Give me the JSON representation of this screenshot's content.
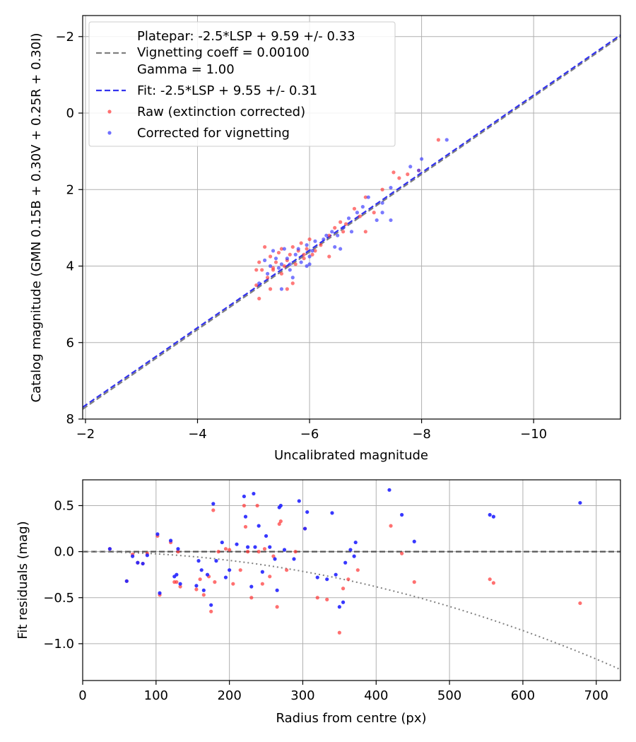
{
  "chart_data": [
    {
      "type": "scatter",
      "xlabel": "Uncalibrated magnitude",
      "ylabel": "Catalog magnitude (GMN 0.15B + 0.30V + 0.25R + 0.30I)",
      "xlim": [
        -1.95,
        -11.55
      ],
      "ylim": [
        8.0,
        -2.55
      ],
      "x_inverted": true,
      "y_inverted": true,
      "grid": true,
      "xticks": [
        -2,
        -4,
        -6,
        -8,
        -10
      ],
      "yticks": [
        -2,
        0,
        2,
        4,
        6,
        8
      ],
      "xtick_labels": [
        "−2",
        "−4",
        "−6",
        "−8",
        "−10"
      ],
      "ytick_labels": [
        "−2",
        "0",
        "2",
        "4",
        "6",
        "8"
      ],
      "legend_position": "top-left",
      "legend": {
        "platepar_line1": "Platepar: -2.5*LSP + 9.59 +/- 0.33",
        "platepar_line2": "Vignetting coeff = 0.00100",
        "platepar_line3": "Gamma = 1.00",
        "fit": "Fit: -2.5*LSP + 9.55 +/- 0.31",
        "raw": "Raw (extinction corrected)",
        "corrected": "Corrected for vignetting"
      },
      "colors": {
        "platepar": "#808080",
        "fit": "#3333ee",
        "raw": "#ff3333",
        "corrected": "#3333ff"
      },
      "lines": [
        {
          "name": "Platepar",
          "x": [
            -1.95,
            -11.55
          ],
          "y": [
            7.74,
            -2.0
          ]
        },
        {
          "name": "Fit",
          "x": [
            -1.95,
            -11.55
          ],
          "y": [
            7.69,
            -2.04
          ]
        }
      ],
      "series": [
        {
          "name": "Raw (extinction corrected)",
          "points": [
            [
              -8.3,
              0.7
            ],
            [
              -7.95,
              1.5
            ],
            [
              -7.75,
              1.6
            ],
            [
              -7.6,
              1.7
            ],
            [
              -7.5,
              1.55
            ],
            [
              -7.3,
              2.0
            ],
            [
              -7.0,
              2.2
            ],
            [
              -7.15,
              2.6
            ],
            [
              -7.0,
              3.1
            ],
            [
              -6.9,
              2.7
            ],
            [
              -6.8,
              2.5
            ],
            [
              -6.65,
              2.9
            ],
            [
              -6.6,
              3.1
            ],
            [
              -6.55,
              2.85
            ],
            [
              -6.45,
              3.0
            ],
            [
              -6.35,
              3.2
            ],
            [
              -6.2,
              3.45
            ],
            [
              -6.05,
              3.7
            ],
            [
              -6.0,
              3.3
            ],
            [
              -5.95,
              3.55
            ],
            [
              -5.9,
              3.8
            ],
            [
              -5.85,
              3.4
            ],
            [
              -5.8,
              3.6
            ],
            [
              -5.75,
              3.95
            ],
            [
              -5.7,
              3.5
            ],
            [
              -5.65,
              3.7
            ],
            [
              -5.6,
              3.85
            ],
            [
              -5.55,
              4.0
            ],
            [
              -5.5,
              4.2
            ],
            [
              -5.45,
              3.65
            ],
            [
              -5.4,
              3.9
            ],
            [
              -5.35,
              4.1
            ],
            [
              -5.3,
              3.75
            ],
            [
              -5.25,
              4.3
            ],
            [
              -5.2,
              3.5
            ],
            [
              -5.15,
              4.1
            ],
            [
              -5.1,
              3.9
            ],
            [
              -5.05,
              4.5
            ],
            [
              -5.3,
              4.6
            ],
            [
              -5.6,
              4.6
            ],
            [
              -5.1,
              4.85
            ],
            [
              -5.35,
              4.05
            ],
            [
              -5.5,
              3.55
            ],
            [
              -6.35,
              3.75
            ],
            [
              -6.1,
              3.6
            ],
            [
              -5.05,
              4.1
            ],
            [
              -5.7,
              4.45
            ],
            [
              -5.9,
              3.7
            ]
          ]
        },
        {
          "name": "Corrected for vignetting",
          "points": [
            [
              -8.45,
              0.7
            ],
            [
              -8.0,
              1.2
            ],
            [
              -7.95,
              1.5
            ],
            [
              -7.8,
              1.4
            ],
            [
              -7.45,
              1.95
            ],
            [
              -7.3,
              2.35
            ],
            [
              -7.3,
              2.6
            ],
            [
              -7.2,
              2.8
            ],
            [
              -7.05,
              2.2
            ],
            [
              -6.95,
              2.45
            ],
            [
              -6.85,
              2.6
            ],
            [
              -6.7,
              2.75
            ],
            [
              -6.6,
              3.0
            ],
            [
              -6.5,
              3.2
            ],
            [
              -6.45,
              3.5
            ],
            [
              -6.4,
              3.1
            ],
            [
              -6.3,
              3.2
            ],
            [
              -6.25,
              3.3
            ],
            [
              -6.1,
              3.35
            ],
            [
              -6.05,
              3.6
            ],
            [
              -6.0,
              3.75
            ],
            [
              -5.95,
              3.45
            ],
            [
              -5.85,
              3.9
            ],
            [
              -5.8,
              3.55
            ],
            [
              -5.75,
              3.7
            ],
            [
              -5.65,
              3.95
            ],
            [
              -5.6,
              3.8
            ],
            [
              -5.55,
              3.55
            ],
            [
              -5.5,
              3.95
            ],
            [
              -5.45,
              4.05
            ],
            [
              -5.4,
              3.8
            ],
            [
              -5.35,
              3.6
            ],
            [
              -5.3,
              4.0
            ],
            [
              -5.25,
              4.2
            ],
            [
              -5.2,
              3.85
            ],
            [
              -5.1,
              4.45
            ],
            [
              -6.0,
              3.95
            ],
            [
              -5.7,
              4.3
            ],
            [
              -5.5,
              4.6
            ],
            [
              -6.75,
              3.1
            ],
            [
              -6.55,
              3.55
            ],
            [
              -7.45,
              2.8
            ],
            [
              -5.95,
              4.0
            ],
            [
              -5.65,
              4.1
            ]
          ]
        }
      ]
    },
    {
      "type": "scatter",
      "xlabel": "Radius from centre (px)",
      "ylabel": "Fit residuals (mag)",
      "xlim": [
        0,
        733
      ],
      "ylim": [
        -1.4,
        0.78
      ],
      "grid": true,
      "xticks": [
        0,
        100,
        200,
        300,
        400,
        500,
        600,
        700
      ],
      "yticks": [
        -1.0,
        -0.5,
        0.0,
        0.5
      ],
      "xtick_labels": [
        "0",
        "100",
        "200",
        "300",
        "400",
        "500",
        "600",
        "700"
      ],
      "ytick_labels": [
        "−1.0",
        "−0.5",
        "0.0",
        "0.5"
      ],
      "colors": {
        "zero_line": "#555555",
        "vignetting_curve": "#808080",
        "raw": "#ff3333",
        "corrected": "#2222ff"
      },
      "lines": [
        {
          "name": "zero",
          "x": [
            0,
            733
          ],
          "y": [
            0,
            0
          ]
        },
        {
          "name": "vignetting",
          "x": [
            0,
            733
          ],
          "y": [
            0,
            -1.28
          ],
          "shape": "quadratic"
        }
      ],
      "series": [
        {
          "name": "Raw (extinction corrected)",
          "points": [
            [
              37,
              0.03
            ],
            [
              60,
              -0.32
            ],
            [
              68,
              -0.03
            ],
            [
              75,
              -0.12
            ],
            [
              82,
              -0.13
            ],
            [
              88,
              -0.02
            ],
            [
              102,
              0.17
            ],
            [
              105,
              -0.47
            ],
            [
              120,
              0.1
            ],
            [
              125,
              -0.33
            ],
            [
              130,
              0.0
            ],
            [
              128,
              -0.33
            ],
            [
              133,
              -0.38
            ],
            [
              155,
              -0.41
            ],
            [
              160,
              -0.3
            ],
            [
              165,
              -0.47
            ],
            [
              172,
              -0.27
            ],
            [
              175,
              -0.65
            ],
            [
              178,
              0.45
            ],
            [
              180,
              -0.33
            ],
            [
              185,
              0.0
            ],
            [
              195,
              0.03
            ],
            [
              200,
              0.02
            ],
            [
              205,
              -0.35
            ],
            [
              215,
              -0.2
            ],
            [
              220,
              0.5
            ],
            [
              222,
              0.27
            ],
            [
              225,
              0.0
            ],
            [
              230,
              -0.5
            ],
            [
              238,
              0.5
            ],
            [
              240,
              0.0
            ],
            [
              245,
              -0.35
            ],
            [
              248,
              0.03
            ],
            [
              255,
              -0.27
            ],
            [
              260,
              -0.05
            ],
            [
              265,
              -0.6
            ],
            [
              268,
              0.3
            ],
            [
              270,
              0.33
            ],
            [
              278,
              -0.2
            ],
            [
              290,
              0.0
            ],
            [
              303,
              0.25
            ],
            [
              320,
              -0.5
            ],
            [
              333,
              -0.52
            ],
            [
              350,
              -0.88
            ],
            [
              355,
              -0.4
            ],
            [
              362,
              -0.3
            ],
            [
              375,
              -0.2
            ],
            [
              420,
              0.28
            ],
            [
              435,
              -0.02
            ],
            [
              452,
              -0.33
            ],
            [
              555,
              -0.3
            ],
            [
              560,
              -0.34
            ],
            [
              678,
              -0.56
            ]
          ]
        },
        {
          "name": "Corrected for vignetting",
          "points": [
            [
              37,
              0.03
            ],
            [
              60,
              -0.32
            ],
            [
              68,
              -0.05
            ],
            [
              75,
              -0.12
            ],
            [
              82,
              -0.13
            ],
            [
              88,
              -0.04
            ],
            [
              102,
              0.19
            ],
            [
              105,
              -0.45
            ],
            [
              120,
              0.12
            ],
            [
              125,
              -0.27
            ],
            [
              130,
              0.03
            ],
            [
              128,
              -0.25
            ],
            [
              133,
              -0.35
            ],
            [
              155,
              -0.37
            ],
            [
              158,
              -0.1
            ],
            [
              162,
              -0.2
            ],
            [
              165,
              -0.42
            ],
            [
              170,
              -0.25
            ],
            [
              175,
              -0.58
            ],
            [
              178,
              0.52
            ],
            [
              182,
              -0.1
            ],
            [
              190,
              0.1
            ],
            [
              195,
              -0.28
            ],
            [
              200,
              -0.2
            ],
            [
              210,
              0.08
            ],
            [
              220,
              0.6
            ],
            [
              222,
              0.38
            ],
            [
              225,
              0.05
            ],
            [
              230,
              -0.38
            ],
            [
              233,
              0.63
            ],
            [
              235,
              0.05
            ],
            [
              240,
              0.28
            ],
            [
              245,
              -0.22
            ],
            [
              250,
              0.17
            ],
            [
              255,
              0.05
            ],
            [
              262,
              -0.08
            ],
            [
              265,
              -0.42
            ],
            [
              268,
              0.48
            ],
            [
              270,
              0.5
            ],
            [
              275,
              0.02
            ],
            [
              288,
              -0.08
            ],
            [
              295,
              0.55
            ],
            [
              303,
              0.25
            ],
            [
              306,
              0.43
            ],
            [
              320,
              -0.28
            ],
            [
              333,
              -0.3
            ],
            [
              340,
              0.42
            ],
            [
              345,
              -0.25
            ],
            [
              350,
              -0.6
            ],
            [
              355,
              -0.55
            ],
            [
              358,
              -0.12
            ],
            [
              365,
              0.02
            ],
            [
              370,
              -0.05
            ],
            [
              372,
              0.1
            ],
            [
              418,
              0.67
            ],
            [
              435,
              0.4
            ],
            [
              452,
              0.11
            ],
            [
              555,
              0.4
            ],
            [
              560,
              0.38
            ],
            [
              678,
              0.53
            ]
          ]
        }
      ]
    }
  ]
}
